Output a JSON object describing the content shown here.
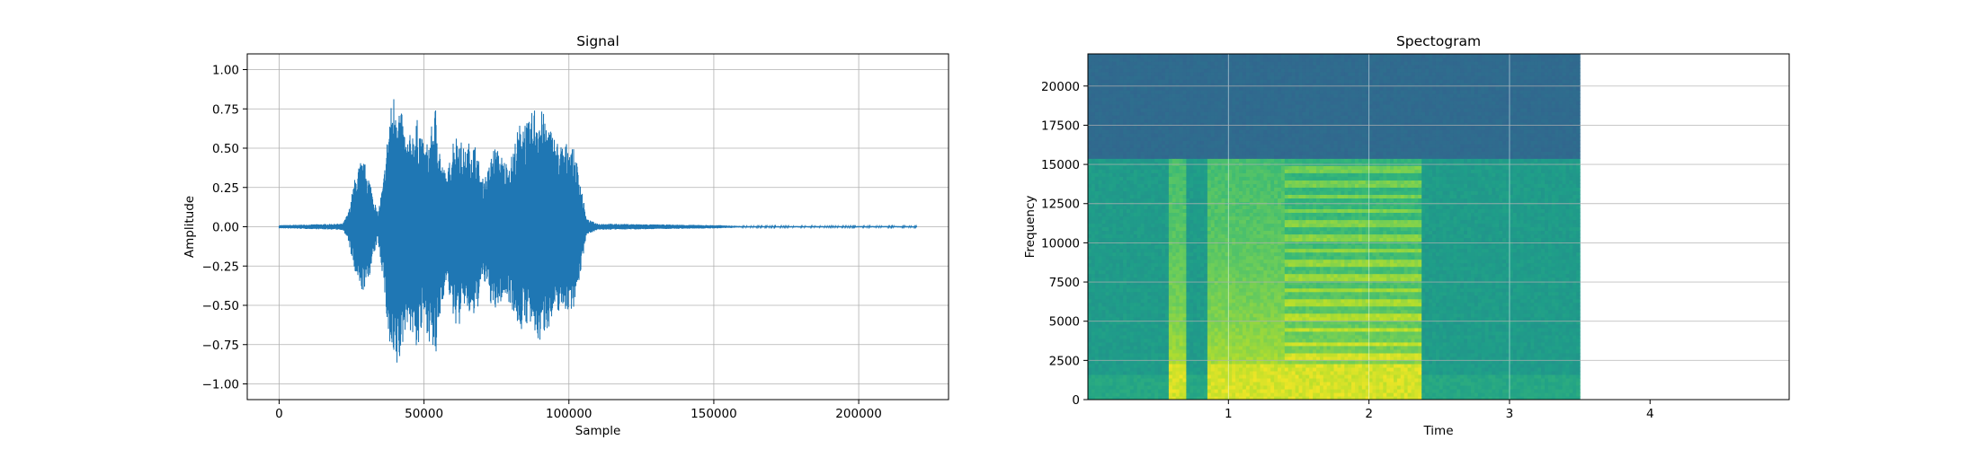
{
  "chart_data": [
    {
      "type": "line",
      "title": "Signal",
      "xlabel": "Sample",
      "ylabel": "Amplitude",
      "xlim": [
        -11000,
        231000
      ],
      "ylim": [
        -1.1,
        1.1
      ],
      "grid": true,
      "line_color": "#1f77b4",
      "xticks": [
        0,
        50000,
        100000,
        150000,
        200000
      ],
      "xtick_labels": [
        "0",
        "50000",
        "100000",
        "150000",
        "200000"
      ],
      "yticks": [
        1.0,
        0.75,
        0.5,
        0.25,
        0.0,
        -0.25,
        -0.5,
        -0.75,
        -1.0
      ],
      "ytick_labels": [
        "1.00",
        "0.75",
        "0.50",
        "0.25",
        "0.00",
        "−0.25",
        "−0.50",
        "−0.75",
        "−1.00"
      ],
      "x": [
        0,
        22000,
        24000,
        26000,
        28000,
        30000,
        32000,
        34000,
        36000,
        38000,
        40000,
        42000,
        44000,
        46000,
        48000,
        50000,
        52000,
        54000,
        56000,
        58000,
        60000,
        62000,
        64000,
        66000,
        68000,
        70000,
        72000,
        74000,
        76000,
        78000,
        80000,
        82000,
        84000,
        86000,
        88000,
        90000,
        92000,
        94000,
        96000,
        98000,
        100000,
        102000,
        104000,
        106000,
        110000,
        130000,
        152000,
        160000,
        220000
      ],
      "envelope_max": [
        0.01,
        0.02,
        0.1,
        0.3,
        0.42,
        0.4,
        0.25,
        0.08,
        0.3,
        0.72,
        0.9,
        0.75,
        0.55,
        0.62,
        0.7,
        0.5,
        0.58,
        0.78,
        0.42,
        0.32,
        0.58,
        0.6,
        0.48,
        0.56,
        0.52,
        0.3,
        0.36,
        0.52,
        0.48,
        0.42,
        0.44,
        0.6,
        0.72,
        0.66,
        0.78,
        0.76,
        0.7,
        0.62,
        0.55,
        0.52,
        0.55,
        0.48,
        0.3,
        0.05,
        0.02,
        0.015,
        0.01,
        0.004,
        0.004
      ],
      "envelope_min": [
        -0.01,
        -0.02,
        -0.1,
        -0.3,
        -0.42,
        -0.4,
        -0.25,
        -0.08,
        -0.35,
        -0.8,
        -0.97,
        -0.85,
        -0.6,
        -0.72,
        -0.8,
        -0.6,
        -0.75,
        -0.88,
        -0.5,
        -0.35,
        -0.6,
        -0.65,
        -0.5,
        -0.6,
        -0.58,
        -0.35,
        -0.4,
        -0.58,
        -0.5,
        -0.45,
        -0.5,
        -0.62,
        -0.68,
        -0.6,
        -0.72,
        -0.75,
        -0.66,
        -0.62,
        -0.55,
        -0.52,
        -0.55,
        -0.5,
        -0.3,
        -0.05,
        -0.02,
        -0.015,
        -0.01,
        -0.004,
        -0.004
      ]
    },
    {
      "type": "heatmap",
      "title": "Spectogram",
      "xlabel": "Time",
      "ylabel": "Frequency",
      "xlim": [
        0.0,
        4.99
      ],
      "ylim": [
        0,
        22050
      ],
      "data_extent_time": [
        0.0,
        3.5
      ],
      "grid": true,
      "xticks": [
        1,
        2,
        3,
        4
      ],
      "xtick_labels": [
        "1",
        "2",
        "3",
        "4"
      ],
      "yticks": [
        0,
        2500,
        5000,
        7500,
        10000,
        12500,
        15000,
        17500,
        20000
      ],
      "ytick_labels": [
        "0",
        "2500",
        "5000",
        "7500",
        "10000",
        "12500",
        "15000",
        "17500",
        "20000"
      ],
      "colormap": "viridis",
      "cutoff_frequency": 15300,
      "background_color": "#2b6c8e",
      "low_band_color": "#23988a",
      "active_segments": [
        [
          0.58,
          0.7
        ],
        [
          0.86,
          2.38
        ]
      ],
      "harmonic_segment": [
        1.4,
        2.38
      ],
      "harmonic_spacing": 850
    }
  ]
}
